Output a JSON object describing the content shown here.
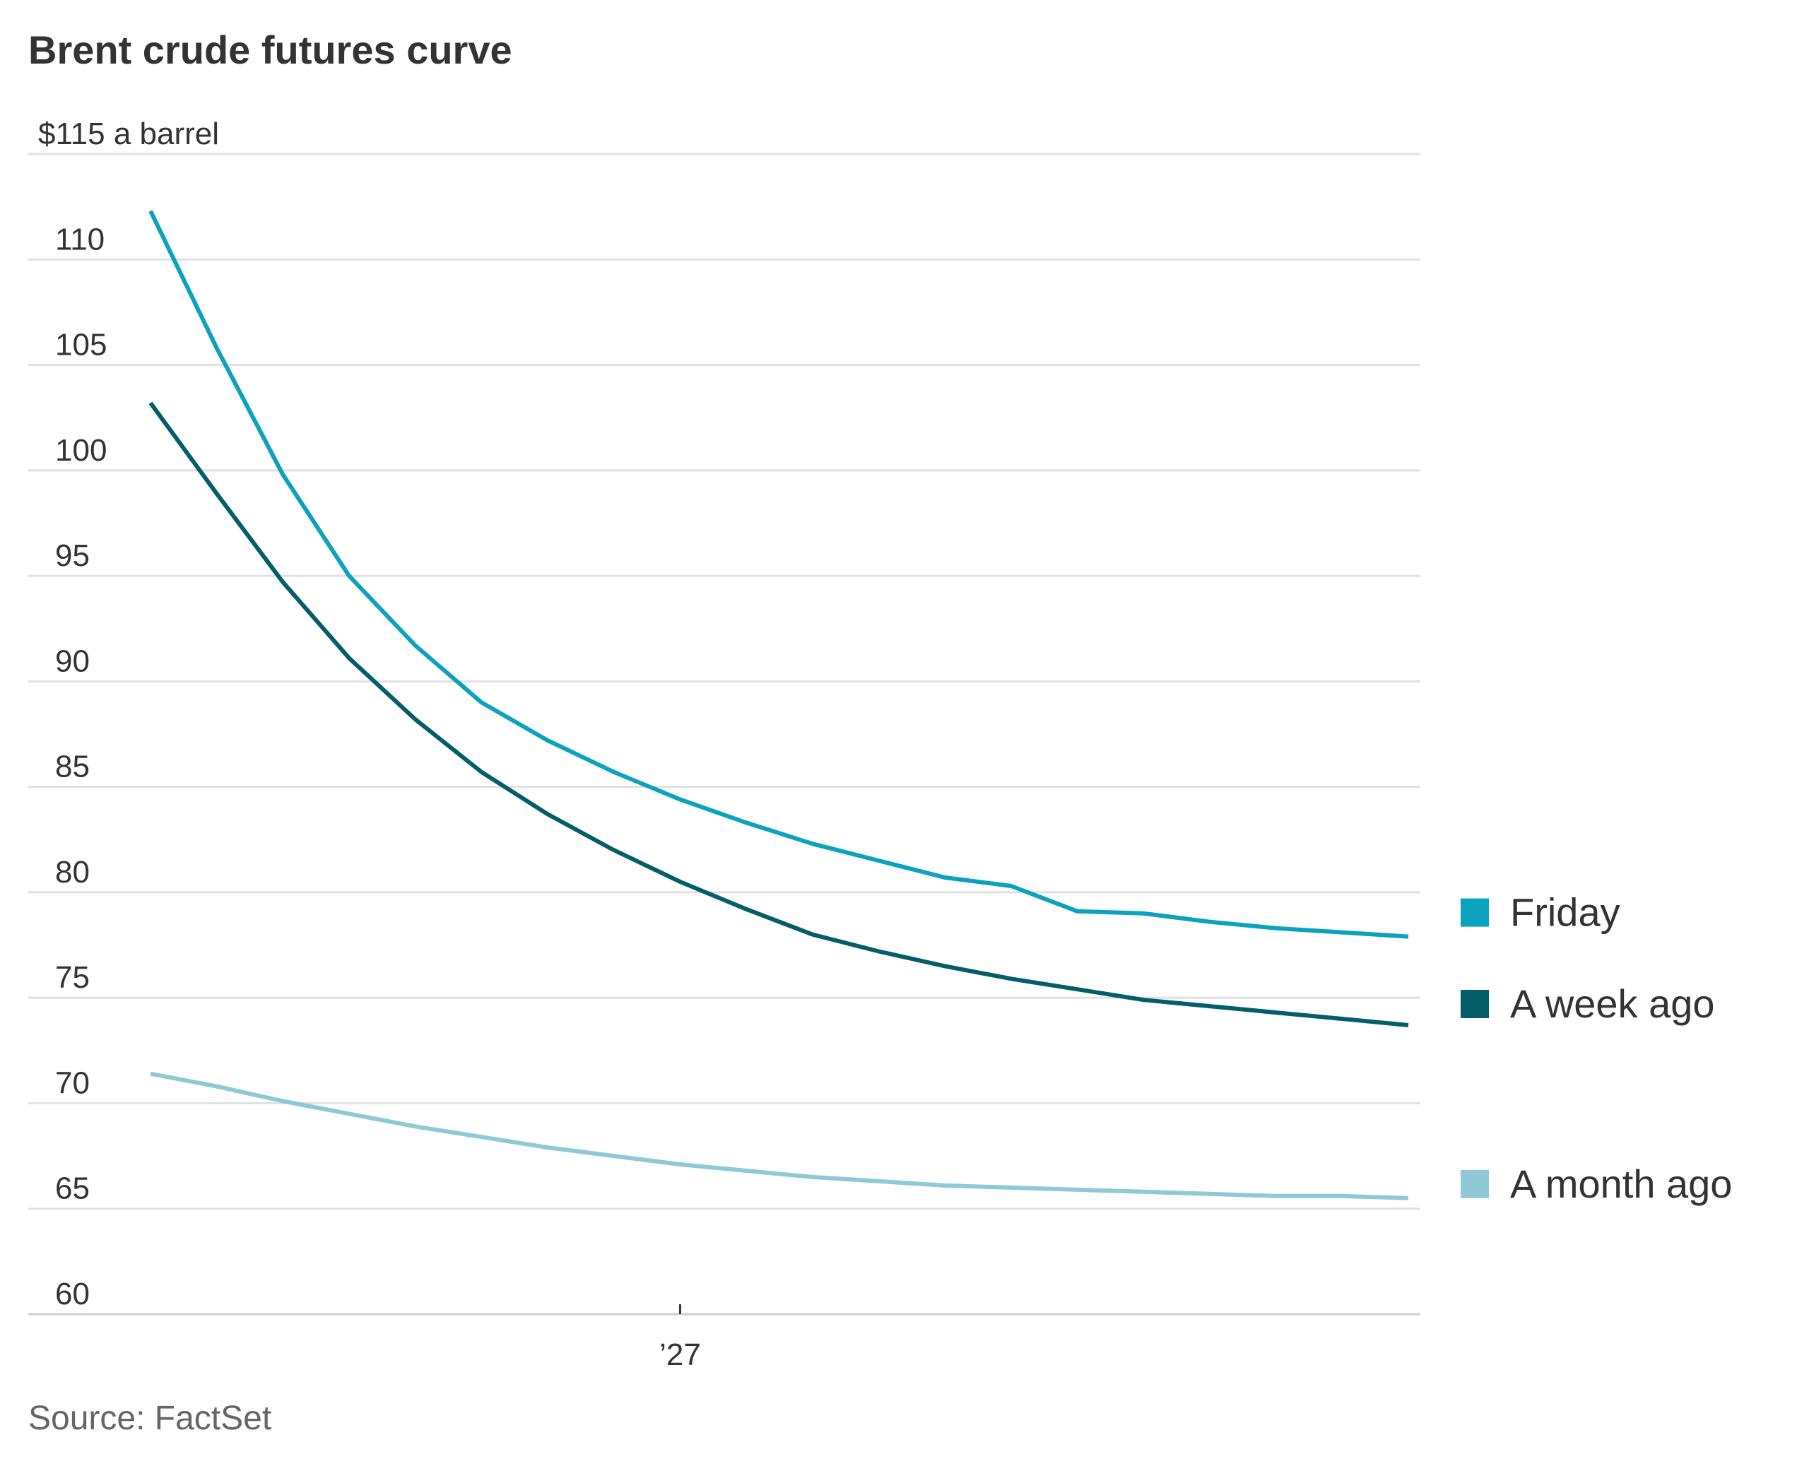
{
  "chart_data": {
    "type": "line",
    "title": "Brent crude futures curve",
    "y_unit_label": "$115 a barrel",
    "ylim": [
      60,
      115
    ],
    "y_ticks": [
      60,
      65,
      70,
      75,
      80,
      85,
      90,
      95,
      100,
      105,
      110,
      115
    ],
    "y_tick_labels": [
      "60",
      "65",
      "70",
      "75",
      "80",
      "85",
      "90",
      "95",
      "100",
      "105",
      "110",
      "$115 a barrel"
    ],
    "x_tick_labels": [
      {
        "label": "’27",
        "index": 8
      }
    ],
    "x_count": 20,
    "grid": true,
    "legend_placement": "right",
    "series": [
      {
        "name": "Friday",
        "color": "#0aa2bd",
        "values": [
          112.3,
          105.8,
          99.8,
          95.0,
          91.7,
          89.0,
          87.2,
          85.7,
          84.4,
          83.3,
          82.3,
          81.5,
          80.7,
          80.3,
          79.1,
          79.0,
          78.6,
          78.3,
          78.1,
          77.9
        ]
      },
      {
        "name": "A week ago",
        "color": "#045e6a",
        "values": [
          103.2,
          98.9,
          94.7,
          91.1,
          88.2,
          85.7,
          83.7,
          82.0,
          80.5,
          79.2,
          78.0,
          77.2,
          76.5,
          75.9,
          75.4,
          74.9,
          74.6,
          74.3,
          74.0,
          73.7
        ]
      },
      {
        "name": "A month ago",
        "color": "#8ecad6",
        "values": [
          71.4,
          70.8,
          70.1,
          69.5,
          68.9,
          68.4,
          67.9,
          67.5,
          67.1,
          66.8,
          66.5,
          66.3,
          66.1,
          66.0,
          65.9,
          65.8,
          65.7,
          65.6,
          65.6,
          65.5
        ]
      }
    ]
  },
  "source_note": "Source: FactSet"
}
